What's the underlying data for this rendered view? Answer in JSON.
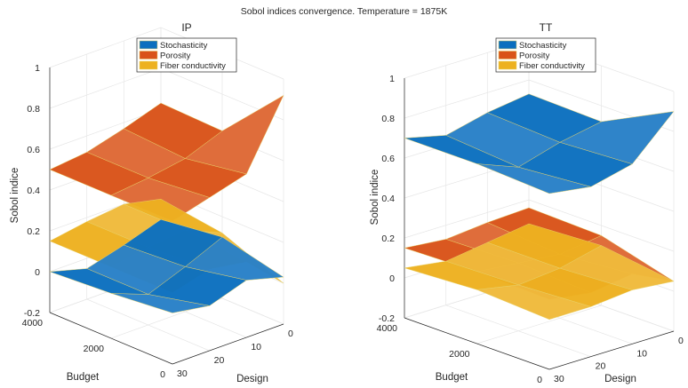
{
  "chart_data": {
    "title": "Sobol indices convergence. Temperature = 1875K",
    "type": "surface",
    "colors": {
      "Stochasticity": "#0b6fbf",
      "Porosity": "#d95319",
      "Fiber conductivity": "#edb120"
    },
    "axes": [
      {
        "title": "IP",
        "xlabel": "Design",
        "ylabel": "Budget",
        "zlabel": "Sobol indice",
        "xlim": [
          0,
          30
        ],
        "ylim": [
          0,
          4000
        ],
        "zlim": [
          -0.2,
          1
        ],
        "x_ticks": [
          "0",
          "10",
          "20",
          "30"
        ],
        "y_ticks": [
          "0",
          "2000",
          "4000"
        ],
        "z_ticks": [
          "-0.2",
          "0",
          "0.2",
          "0.4",
          "0.6",
          "0.8",
          "1"
        ],
        "legend": [
          "Stochasticity",
          "Porosity",
          "Fiber conductivity"
        ],
        "legend_location": "top",
        "grid": true,
        "series": [
          {
            "name": "Porosity",
            "x": [
              0,
              10,
              20,
              30
            ],
            "y": [
              0,
              2000,
              4000
            ],
            "z": [
              [
                0.92,
                0.6,
                0.55,
                0.5
              ],
              [
                0.62,
                0.55,
                0.52,
                0.5
              ],
              [
                0.63,
                0.57,
                0.52,
                0.5
              ]
            ]
          },
          {
            "name": "Fiber conductivity",
            "x": [
              0,
              10,
              20,
              30
            ],
            "y": [
              0,
              2000,
              4000
            ],
            "z": [
              [
                0.0,
                0.17,
                0.2,
                0.15
              ],
              [
                0.12,
                0.2,
                0.18,
                0.15
              ],
              [
                0.16,
                0.2,
                0.18,
                0.15
              ]
            ]
          },
          {
            "name": "Stochasticity",
            "x": [
              0,
              10,
              20,
              30
            ],
            "y": [
              0,
              2000,
              4000
            ],
            "z": [
              [
                0.03,
                0.08,
                0.02,
                0.05
              ],
              [
                0.1,
                0.02,
                -0.05,
                0.02
              ],
              [
                0.06,
                0.0,
                -0.05,
                0.0
              ]
            ]
          }
        ]
      },
      {
        "title": "TT",
        "xlabel": "Design",
        "ylabel": "Budget",
        "zlabel": "Sobol indice",
        "xlim": [
          0,
          30
        ],
        "ylim": [
          0,
          4000
        ],
        "zlim": [
          -0.2,
          1
        ],
        "x_ticks": [
          "0",
          "10",
          "20",
          "30"
        ],
        "y_ticks": [
          "0",
          "2000",
          "4000"
        ],
        "z_ticks": [
          "-0.2",
          "0",
          "0.2",
          "0.4",
          "0.6",
          "0.8",
          "1"
        ],
        "legend": [
          "Stochasticity",
          "Porosity",
          "Fiber conductivity"
        ],
        "legend_location": "top",
        "grid": true,
        "series": [
          {
            "name": "Stochasticity",
            "x": [
              0,
              10,
              20,
              30
            ],
            "y": [
              0,
              2000,
              4000
            ],
            "z": [
              [
                0.9,
                0.7,
                0.65,
                0.68
              ],
              [
                0.72,
                0.68,
                0.62,
                0.7
              ],
              [
                0.73,
                0.7,
                0.65,
                0.7
              ]
            ]
          },
          {
            "name": "Porosity",
            "x": [
              0,
              10,
              20,
              30
            ],
            "y": [
              0,
              2000,
              4000
            ],
            "z": [
              [
                0.05,
                0.15,
                0.12,
                0.15
              ],
              [
                0.15,
                0.12,
                0.14,
                0.16
              ],
              [
                0.16,
                0.15,
                0.13,
                0.15
              ]
            ]
          },
          {
            "name": "Fiber conductivity",
            "x": [
              0,
              10,
              20,
              30
            ],
            "y": [
              0,
              2000,
              4000
            ],
            "z": [
              [
                0.05,
                0.07,
                0.05,
                0.05
              ],
              [
                0.1,
                0.05,
                0.03,
                0.07
              ],
              [
                0.08,
                0.05,
                0.02,
                0.05
              ]
            ]
          }
        ]
      }
    ]
  }
}
